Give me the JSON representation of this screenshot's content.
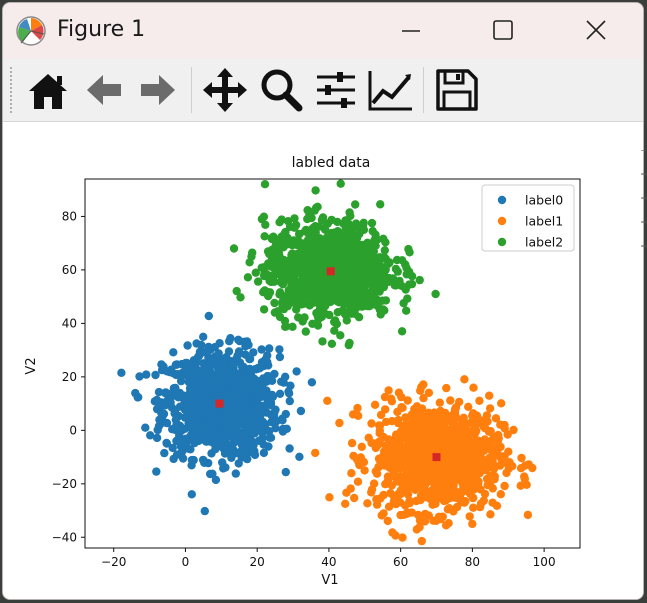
{
  "window": {
    "title": "Figure 1",
    "controls": [
      "minimize-icon",
      "maximize-icon",
      "close-icon"
    ]
  },
  "toolbar": {
    "tools": [
      {
        "name": "home-icon",
        "tooltip": "Reset original view"
      },
      {
        "name": "back-arrow-icon",
        "tooltip": "Back to previous view"
      },
      {
        "name": "forward-arrow-icon",
        "tooltip": "Forward to next view"
      },
      {
        "name": "pan-move-icon",
        "tooltip": "Pan axes"
      },
      {
        "name": "zoom-magnifier-icon",
        "tooltip": "Zoom to rectangle"
      },
      {
        "name": "configure-subplots-icon",
        "tooltip": "Configure subplots"
      },
      {
        "name": "edit-axis-icon",
        "tooltip": "Edit axis, curve and image parameters"
      },
      {
        "name": "save-disk-icon",
        "tooltip": "Save the figure"
      }
    ]
  },
  "chart_data": {
    "type": "scatter",
    "title": "labled data",
    "xlabel": "V1",
    "ylabel": "V2",
    "xlim": [
      -28,
      110
    ],
    "ylim": [
      -44,
      94
    ],
    "xticks": [
      -20,
      0,
      20,
      40,
      60,
      80,
      100
    ],
    "yticks": [
      -40,
      -20,
      0,
      20,
      40,
      60,
      80
    ],
    "grid": false,
    "legend_position": "top-right",
    "series": [
      {
        "name": "label0",
        "color": "#1f77b4",
        "center": [
          10,
          10
        ],
        "spread": [
          8,
          10
        ],
        "count": 1000
      },
      {
        "name": "label1",
        "color": "#ff7f0e",
        "center": [
          70,
          -10
        ],
        "spread": [
          9,
          10
        ],
        "count": 1000
      },
      {
        "name": "label2",
        "color": "#2ca02c",
        "center": [
          40,
          60
        ],
        "spread": [
          9,
          9
        ],
        "count": 1000
      }
    ],
    "centroids": {
      "color": "#d62728",
      "marker": "square",
      "points": [
        {
          "x": 9.5,
          "y": 10
        },
        {
          "x": 70,
          "y": -10
        },
        {
          "x": 40.5,
          "y": 59.5
        }
      ]
    }
  }
}
